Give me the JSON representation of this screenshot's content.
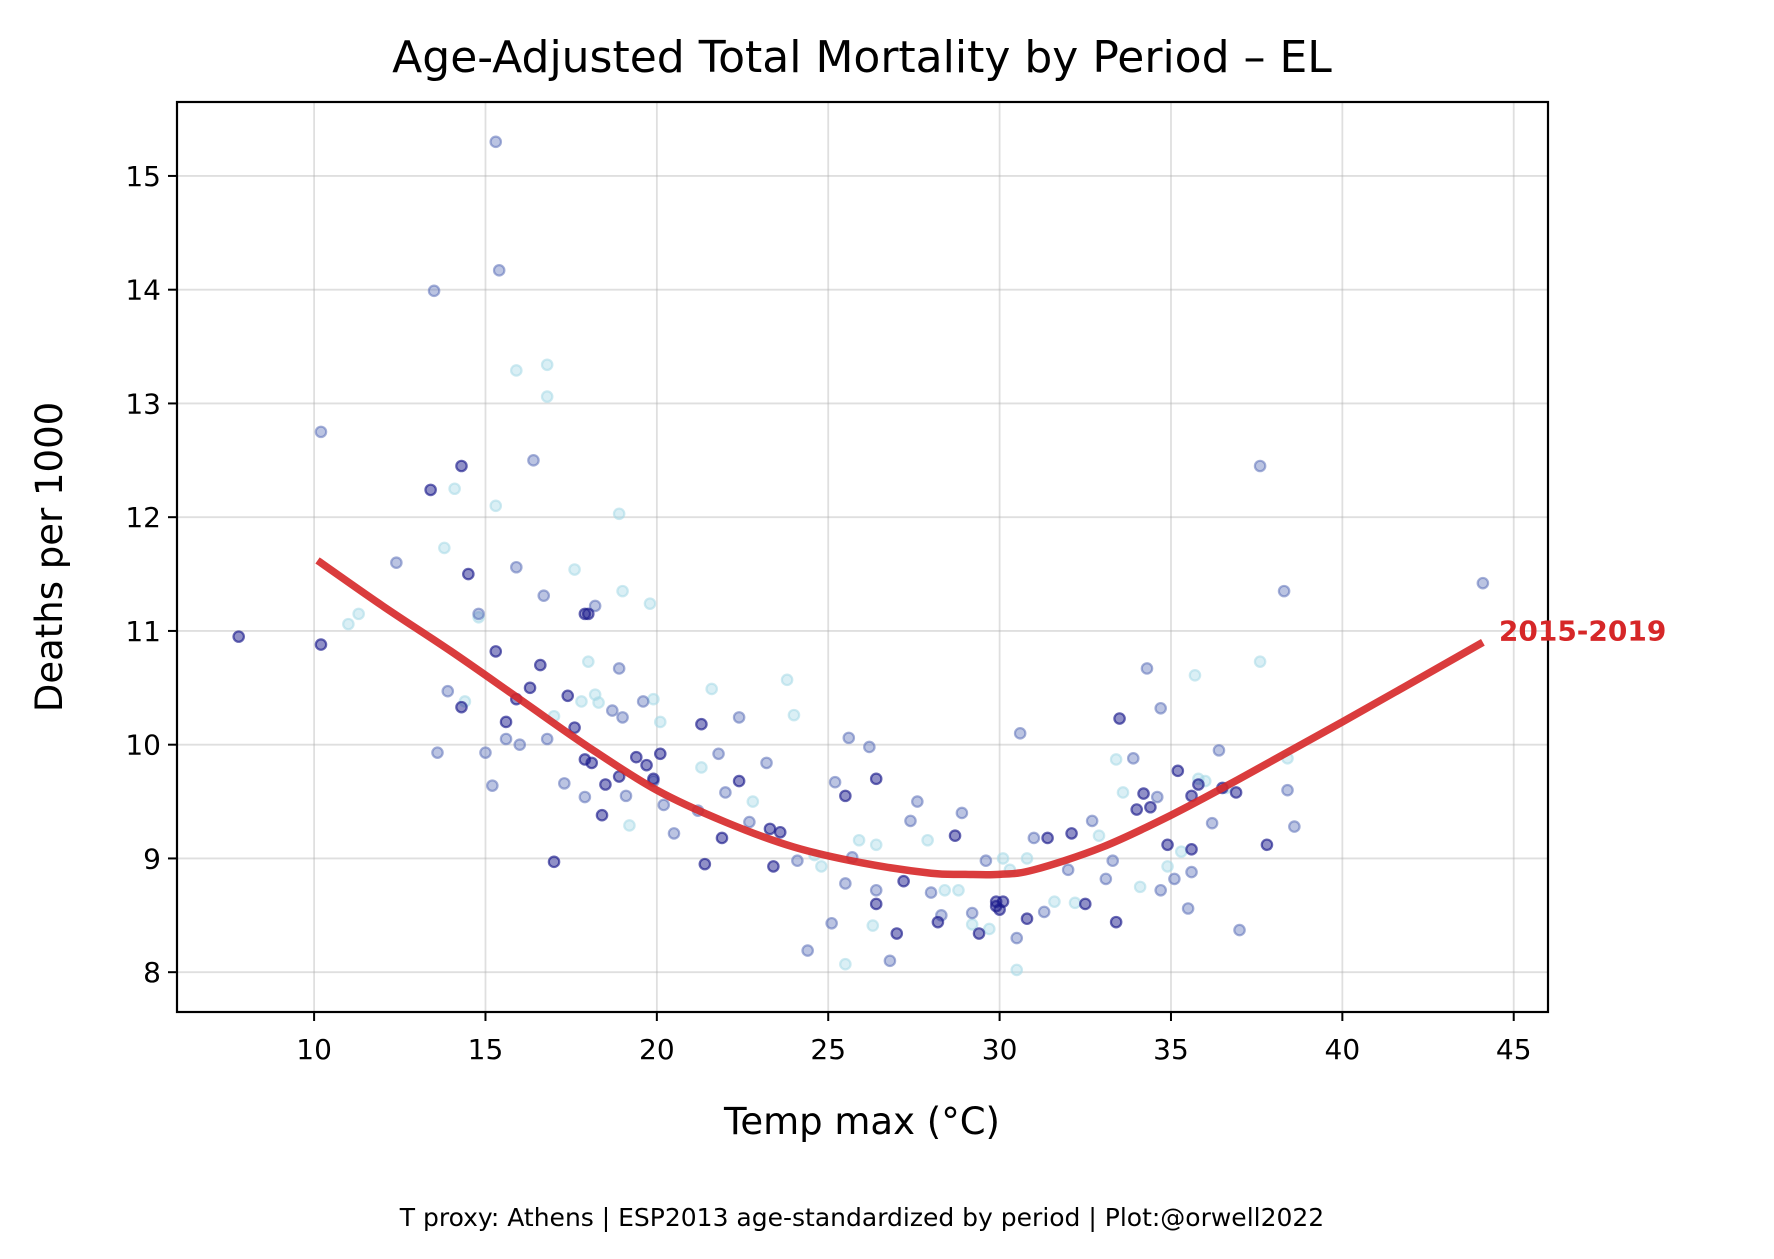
{
  "chart_data": {
    "type": "scatter",
    "title": "Age-Adjusted Total Mortality by Period – EL",
    "xlabel": "Temp max (°C)",
    "ylabel": "Deaths per 1000",
    "caption": "T proxy: Athens | ESP2013 age-standardized by period | Plot:@orwell2022",
    "xlim": [
      6,
      46
    ],
    "ylim": [
      7.65,
      15.65
    ],
    "xticks": [
      10,
      15,
      20,
      25,
      30,
      35,
      40,
      45
    ],
    "yticks": [
      8,
      9,
      10,
      11,
      12,
      13,
      14,
      15
    ],
    "grid": true,
    "colors": {
      "dark_points": "#1a1a8c",
      "medium_points": "#5b6fb8",
      "light_points": "#a6d8e6",
      "fit_line": "#d62728"
    },
    "series": [
      {
        "name": "2015-2019",
        "kind": "fit_line",
        "x": [
          10.1,
          12,
          14,
          16,
          18,
          20,
          22,
          24,
          26,
          28,
          29,
          30,
          31,
          33,
          35,
          37,
          40,
          44.1
        ],
        "y": [
          11.62,
          11.22,
          10.82,
          10.4,
          9.98,
          9.6,
          9.32,
          9.1,
          8.96,
          8.87,
          8.86,
          8.86,
          8.9,
          9.1,
          9.38,
          9.7,
          10.2,
          10.9
        ]
      },
      {
        "kind": "points",
        "shade": "dark",
        "x": [
          7.8,
          10.2,
          13.4,
          14.3,
          14.5,
          14.3,
          15.3,
          16.3,
          16.6,
          17.0,
          17.4,
          17.6,
          17.9,
          18.1,
          18.0,
          18.4,
          18.5,
          18.9,
          19.4,
          19.7,
          19.9,
          20.1,
          21.3,
          21.4,
          21.9,
          22.4,
          23.3,
          23.4,
          23.6,
          25.5,
          26.4,
          26.4,
          27.0,
          27.2,
          28.2,
          28.7,
          29.4,
          29.9,
          29.9,
          30.0,
          30.1,
          30.8,
          31.4,
          32.1,
          32.5,
          33.4,
          33.5,
          34.0,
          34.2,
          34.4,
          34.9,
          35.2,
          35.6,
          35.6,
          35.8,
          36.5,
          36.9,
          37.8,
          17.9,
          15.6,
          15.9
        ],
        "y": [
          10.95,
          10.88,
          12.24,
          12.45,
          11.5,
          10.33,
          10.82,
          10.5,
          10.7,
          8.97,
          10.43,
          10.15,
          9.87,
          9.84,
          11.15,
          9.38,
          9.65,
          9.72,
          9.89,
          9.82,
          9.7,
          9.92,
          10.18,
          8.95,
          9.18,
          9.68,
          9.26,
          8.93,
          9.23,
          9.55,
          9.7,
          8.6,
          8.34,
          8.8,
          8.44,
          9.2,
          8.34,
          8.62,
          8.58,
          8.55,
          8.62,
          8.47,
          9.18,
          9.22,
          8.6,
          8.44,
          10.23,
          9.43,
          9.57,
          9.45,
          9.12,
          9.77,
          9.55,
          9.08,
          9.65,
          9.62,
          9.58,
          9.12,
          11.15,
          10.2,
          10.4
        ]
      },
      {
        "kind": "points",
        "shade": "medium",
        "x": [
          10.2,
          12.4,
          13.5,
          13.6,
          13.9,
          15.3,
          15.4,
          15.9,
          16.4,
          16.7,
          15.6,
          16.0,
          15.2,
          14.8,
          15.0,
          16.8,
          17.3,
          17.9,
          18.2,
          18.9,
          19.0,
          19.6,
          19.9,
          20.2,
          20.5,
          21.2,
          21.8,
          22.0,
          22.4,
          22.7,
          23.2,
          24.1,
          24.4,
          25.1,
          25.2,
          25.5,
          25.6,
          25.7,
          26.2,
          26.4,
          26.8,
          27.4,
          27.6,
          28.0,
          28.3,
          28.9,
          29.2,
          29.6,
          30.5,
          30.6,
          31.0,
          31.3,
          32.0,
          32.7,
          33.1,
          33.3,
          33.9,
          34.3,
          34.6,
          34.7,
          35.1,
          35.5,
          35.6,
          36.2,
          36.4,
          37.0,
          38.3,
          38.4,
          38.6,
          44.1,
          37.6,
          34.7,
          18.7,
          19.1
        ],
        "y": [
          12.75,
          11.6,
          13.99,
          9.93,
          10.47,
          15.3,
          14.17,
          11.56,
          12.5,
          11.31,
          10.05,
          10.0,
          9.64,
          11.15,
          9.93,
          10.05,
          9.66,
          9.54,
          11.22,
          10.67,
          10.24,
          10.38,
          9.68,
          9.47,
          9.22,
          9.42,
          9.92,
          9.58,
          10.24,
          9.32,
          9.84,
          8.98,
          8.19,
          8.43,
          9.67,
          8.78,
          10.06,
          9.01,
          9.98,
          8.72,
          8.1,
          9.33,
          9.5,
          8.7,
          8.5,
          9.4,
          8.52,
          8.98,
          8.3,
          10.1,
          9.18,
          8.53,
          8.9,
          9.33,
          8.82,
          8.98,
          9.88,
          10.67,
          9.54,
          8.72,
          8.82,
          8.56,
          8.88,
          9.31,
          9.95,
          8.37,
          11.35,
          9.6,
          9.28,
          11.42,
          12.45,
          10.32,
          10.3,
          9.55
        ],
        "note": ""
      },
      {
        "kind": "points",
        "shade": "light",
        "x": [
          11.0,
          11.3,
          13.8,
          14.1,
          14.4,
          14.8,
          15.3,
          15.9,
          16.8,
          16.8,
          17.0,
          17.6,
          17.8,
          18.0,
          18.2,
          18.3,
          18.9,
          19.0,
          19.2,
          19.8,
          19.9,
          20.1,
          21.3,
          21.6,
          22.8,
          23.8,
          24.0,
          24.6,
          24.8,
          25.9,
          26.3,
          26.4,
          27.9,
          28.4,
          28.8,
          29.2,
          29.7,
          30.3,
          30.8,
          31.6,
          32.2,
          32.9,
          33.4,
          33.6,
          34.1,
          34.9,
          35.3,
          35.7,
          36.0,
          36.6,
          37.6,
          38.4,
          25.5,
          30.1,
          30.5,
          35.8
        ],
        "y": [
          11.06,
          11.15,
          11.73,
          12.25,
          10.38,
          11.12,
          12.1,
          13.29,
          13.34,
          13.06,
          10.25,
          11.54,
          10.38,
          10.73,
          10.44,
          10.37,
          12.03,
          11.35,
          9.29,
          11.24,
          10.4,
          10.2,
          9.8,
          10.49,
          9.5,
          10.57,
          10.26,
          9.03,
          8.93,
          9.16,
          8.41,
          9.12,
          9.16,
          8.72,
          8.72,
          8.42,
          8.38,
          8.9,
          9.0,
          8.62,
          8.61,
          9.2,
          9.87,
          9.58,
          8.75,
          8.93,
          9.06,
          10.61,
          9.68,
          9.62,
          10.73,
          9.88,
          8.07,
          9.0,
          8.02,
          9.7
        ]
      }
    ]
  }
}
